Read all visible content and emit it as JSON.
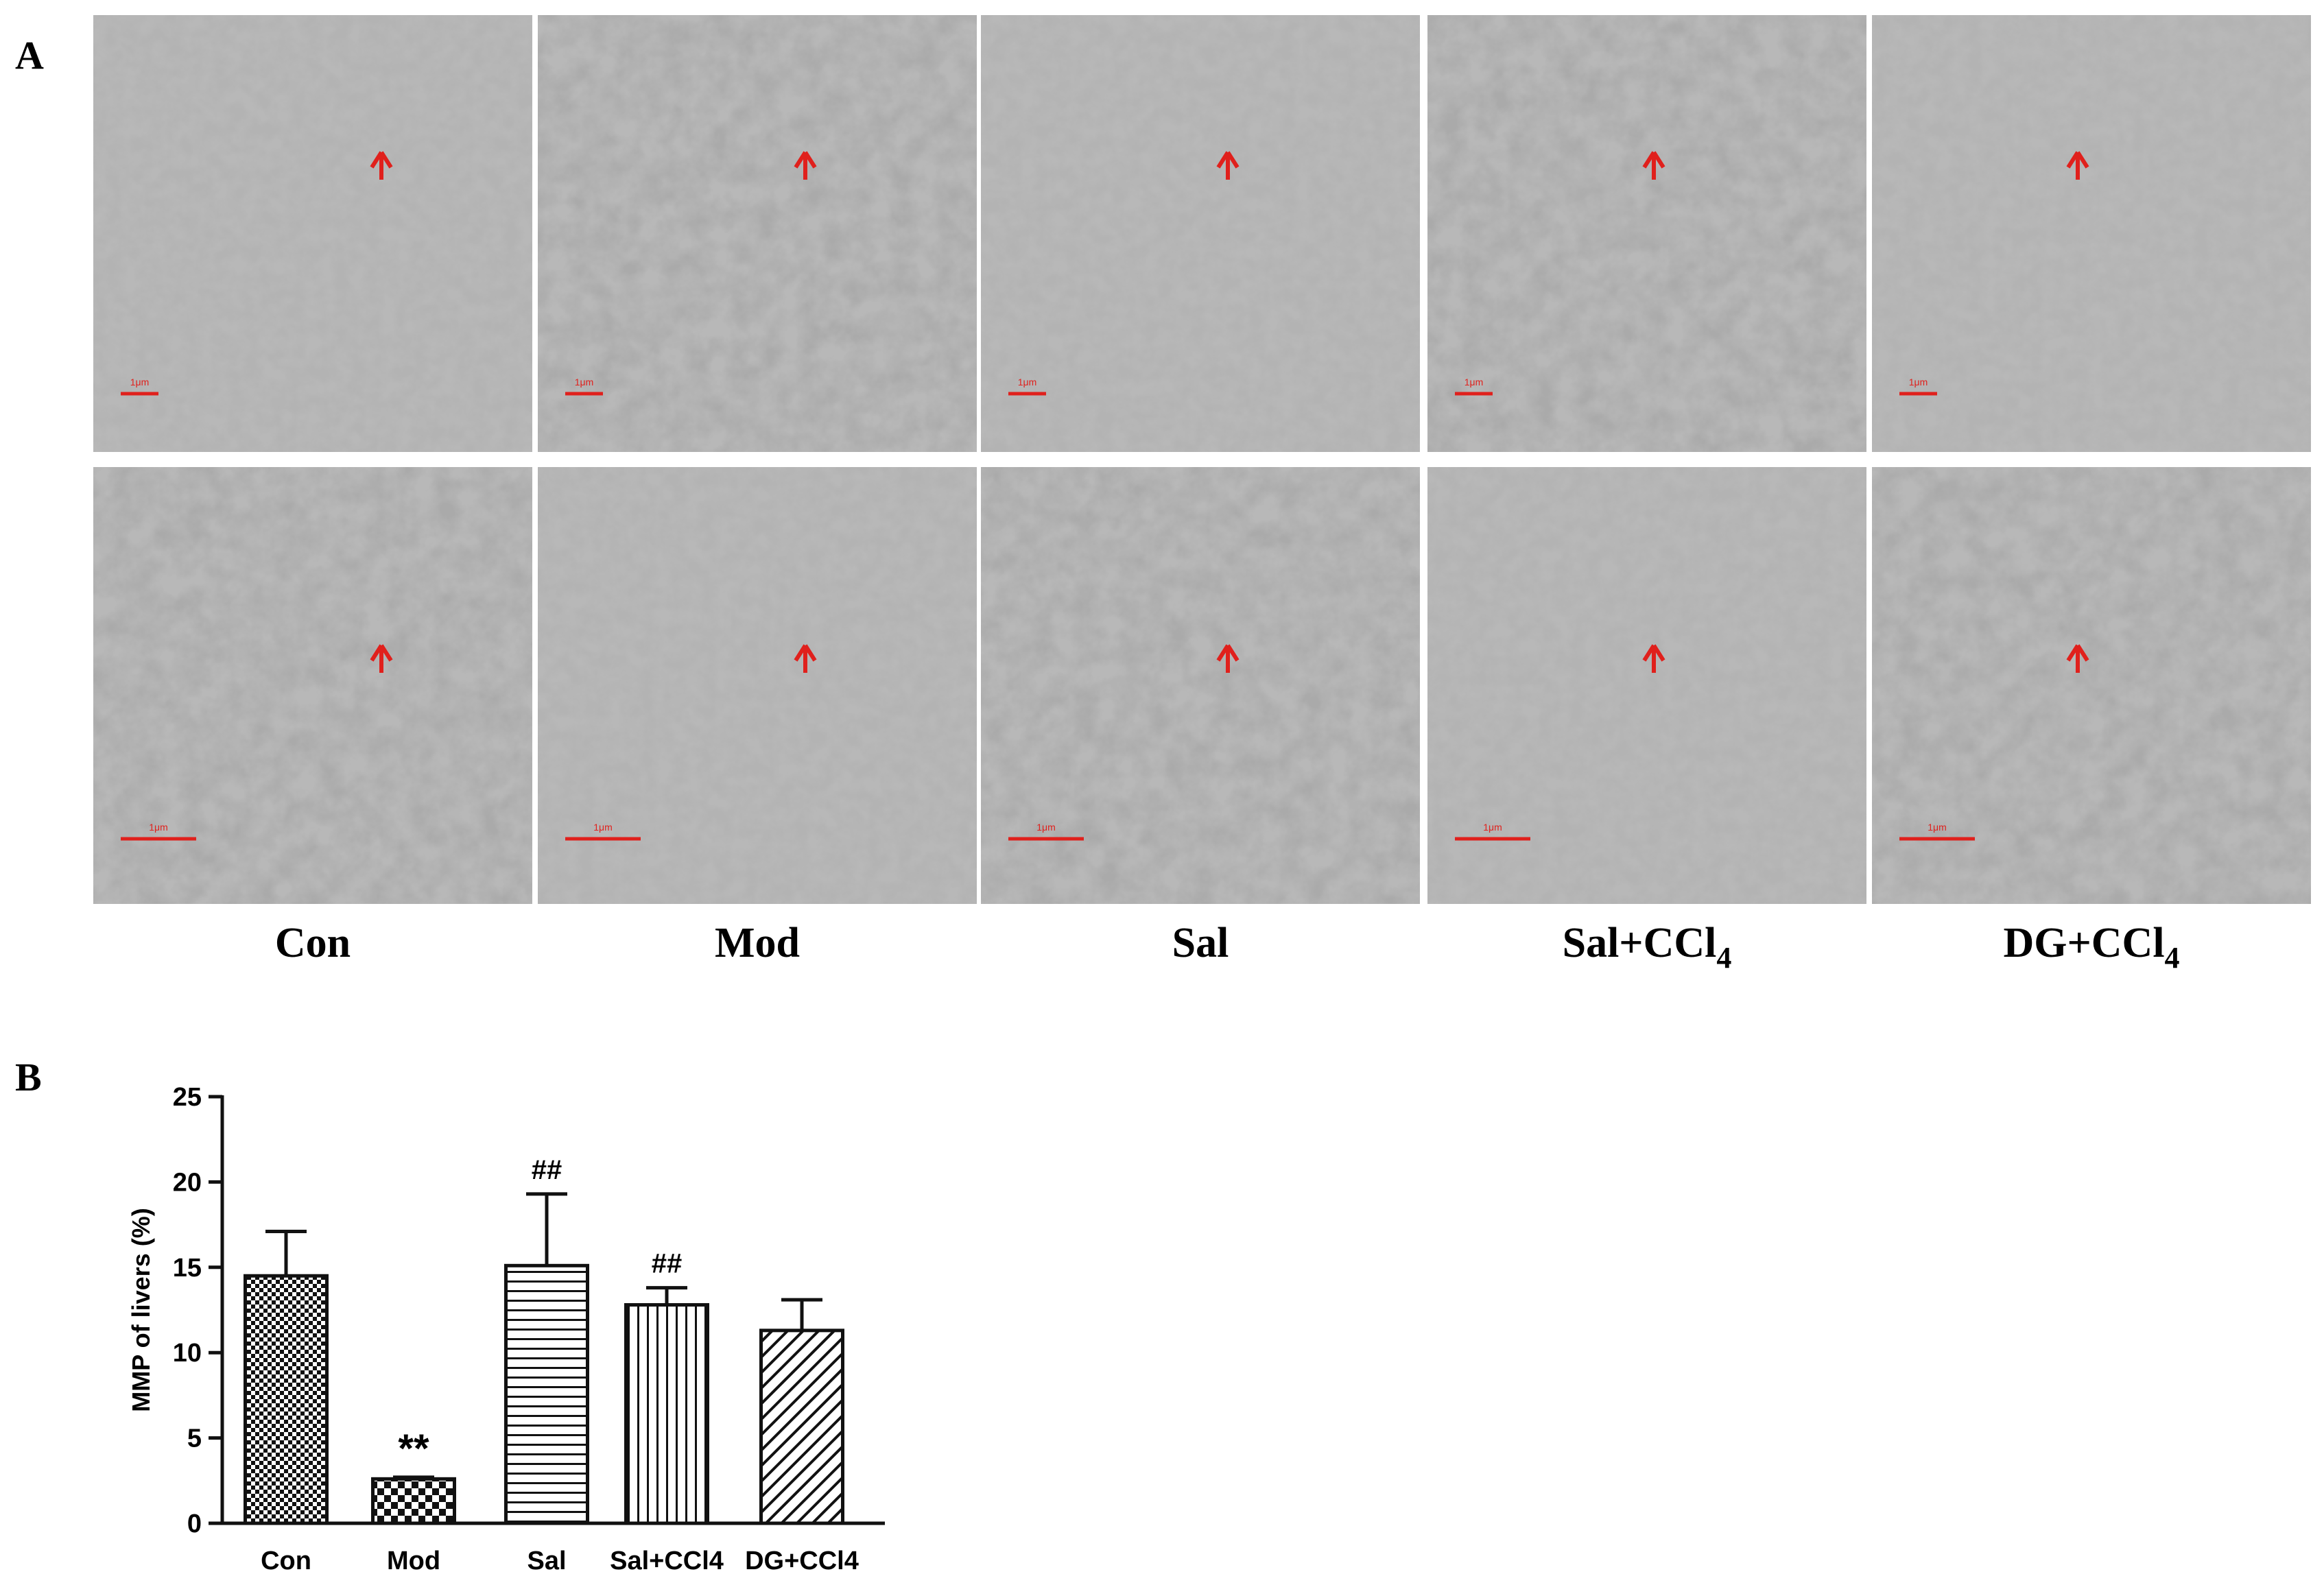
{
  "panel_a": {
    "label": "A",
    "scale_bar_label": "1μm",
    "groups": [
      {
        "label": "Con"
      },
      {
        "label": "Mod"
      },
      {
        "label": "Sal"
      },
      {
        "label": "Sal+CCl",
        "subscript": "4"
      },
      {
        "label": "DG+CCl",
        "subscript": "4"
      }
    ]
  },
  "panel_b": {
    "label": "B"
  },
  "chart_data": {
    "type": "bar",
    "y_label": "MMP of livers (%)",
    "categories": [
      "Con",
      "Mod",
      "Sal",
      "Sal+CCl4",
      "DG+CCl4"
    ],
    "values": [
      14.5,
      2.6,
      15.1,
      12.8,
      11.3
    ],
    "errors": [
      2.6,
      0.1,
      4.2,
      1.0,
      1.8
    ],
    "significance": [
      null,
      "**",
      "##",
      "##",
      null
    ],
    "patterns": [
      "checker-fine",
      "checker-coarse",
      "horizontal",
      "vertical",
      "diagonal"
    ],
    "color": "#111111",
    "ylim": [
      0,
      25
    ],
    "yticks": [
      0,
      5,
      10,
      15,
      20,
      25
    ]
  }
}
